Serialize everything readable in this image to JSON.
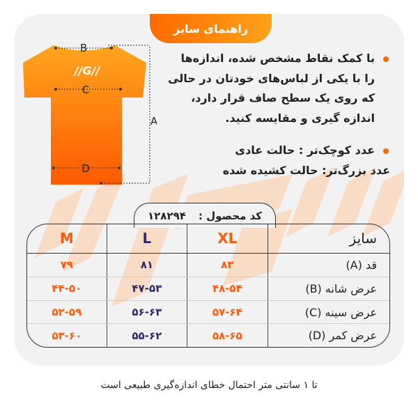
{
  "title": "راهنمای سایز",
  "instructions": [
    "با کمک نقاط مشخص شده، اندازه‌ها را با یکی از لباس‌های خودتان در حالی که روی یک سطح صاف قرار دارد، اندازه گیری و مقایسه کنید.",
    "عدد کوچک‌تر : حالت عادی"
  ],
  "instruction_extra": "عدد بزرگ‌تر: حالت کشیده شده",
  "shirt_labels": {
    "a": "A",
    "b": "B",
    "c": "C",
    "d": "D"
  },
  "product_code": {
    "label": "کد محصول :",
    "value": "۱۲۸۲۹۴"
  },
  "table": {
    "header": {
      "label": "سایز",
      "sizes": [
        "XL",
        "L",
        "M"
      ]
    },
    "rows": [
      {
        "label": "قد (A)",
        "values": [
          "۸۳",
          "۸۱",
          "۷۹"
        ]
      },
      {
        "label": "عرض شانه (B)",
        "values": [
          "۴۸-۵۴",
          "۴۷-۵۳",
          "۴۴-۵۰"
        ]
      },
      {
        "label": "عرض سینه (C)",
        "values": [
          "۵۷-۶۴",
          "۵۶-۶۳",
          "۵۲-۵۹"
        ]
      },
      {
        "label": "عرض کمر (D)",
        "values": [
          "۵۸-۶۵",
          "۵۵-۶۲",
          "۵۳-۶۰"
        ]
      }
    ]
  },
  "footer": "تا ۱ سانتی متر احتمال خطای اندازه‌گیری طبیعی است",
  "colors": {
    "accent": "#ff5a0a",
    "secondary": "#2c2a6b",
    "card": "#f2f2f2"
  }
}
